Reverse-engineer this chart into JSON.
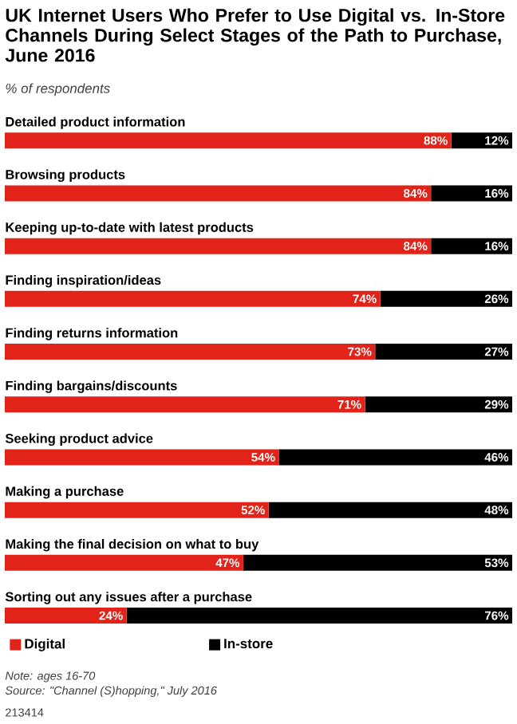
{
  "chart_data": {
    "type": "bar",
    "orientation": "horizontal",
    "stacked": true,
    "title": "UK Internet Users Who Prefer to Use Digital vs. In-Store Channels During Select Stages of the Path to Purchase, June 2016",
    "subtitle": "% of respondents",
    "categories": [
      "Detailed product information",
      "Browsing products",
      "Keeping up-to-date with latest products",
      "Finding inspiration/ideas",
      "Finding returns information",
      "Finding bargains/discounts",
      "Seeking product advice",
      "Making a purchase",
      "Making the final decision on what to buy",
      "Sorting out any issues after a purchase"
    ],
    "series": [
      {
        "name": "Digital",
        "color": "#e2231a",
        "values": [
          88,
          84,
          84,
          74,
          73,
          71,
          54,
          52,
          47,
          24
        ],
        "value_labels": [
          "88%",
          "84%",
          "84%",
          "74%",
          "73%",
          "71%",
          "54%",
          "52%",
          "47%",
          "24%"
        ]
      },
      {
        "name": "In-store",
        "color": "#000000",
        "values": [
          12,
          16,
          16,
          26,
          27,
          29,
          46,
          48,
          53,
          76
        ],
        "value_labels": [
          "12%",
          "16%",
          "16%",
          "26%",
          "27%",
          "29%",
          "46%",
          "48%",
          "53%",
          "76%"
        ]
      }
    ],
    "legend": "bottom left",
    "tick_labels": "y",
    "annotations": [
      "Note: ages 16-70",
      "Source: \"Channel (S)hopping,\" July 2016",
      "213414"
    ]
  }
}
